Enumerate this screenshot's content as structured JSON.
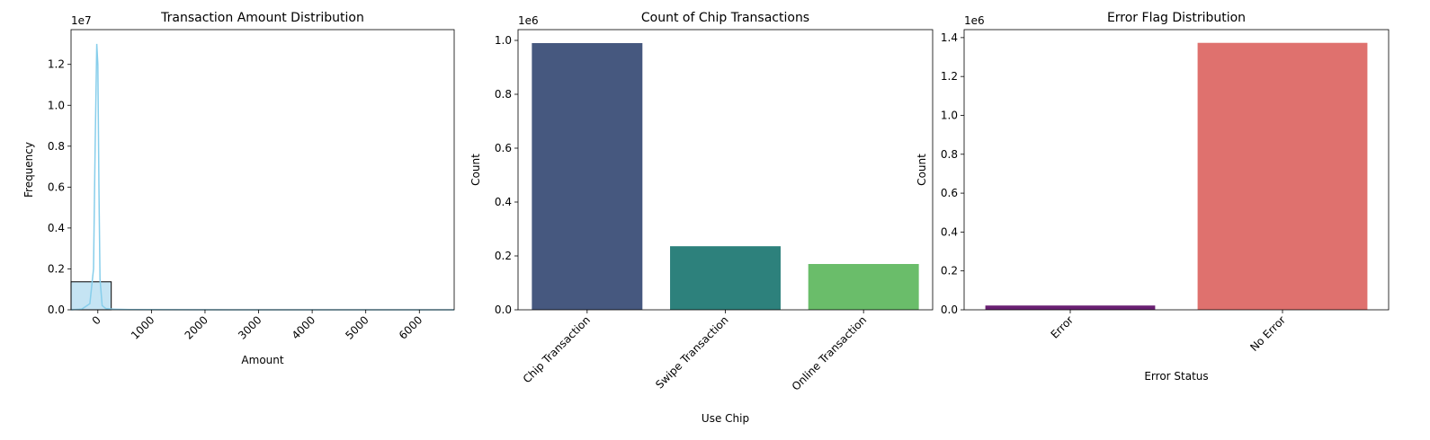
{
  "chart_data": [
    {
      "type": "bar",
      "subtype": "histogram-with-kde",
      "title": "Transaction Amount Distribution",
      "xlabel": "Amount",
      "ylabel": "Frequency",
      "y_multiplier": "1e7",
      "xlim": [
        -500,
        6650
      ],
      "ylim": [
        0,
        13700000
      ],
      "xticks": [
        "0",
        "1000",
        "2000",
        "3000",
        "4000",
        "5000",
        "6000"
      ],
      "xtick_values": [
        0,
        1000,
        2000,
        3000,
        4000,
        5000,
        6000
      ],
      "yticks": [
        "0.0",
        "0.2",
        "0.4",
        "0.6",
        "0.8",
        "1.0",
        "1.2"
      ],
      "ytick_values": [
        0,
        2000000,
        4000000,
        6000000,
        8000000,
        10000000,
        12000000
      ],
      "bars": [
        {
          "x0": -500,
          "x1": 250,
          "value": 1370000
        }
      ],
      "kde": {
        "x": [
          -500,
          -300,
          -150,
          -80,
          -50,
          -20,
          0,
          20,
          40,
          80,
          150,
          300,
          600,
          1500,
          3000,
          6650
        ],
        "y": [
          0,
          30000,
          300000,
          2000000,
          8000000,
          13000000,
          12000000,
          6000000,
          1500000,
          200000,
          60000,
          25000,
          15000,
          5000,
          2000,
          0
        ]
      },
      "colors": {
        "bar": "#c5e4f3",
        "edge": "#000000",
        "kde": "#87ceeb"
      }
    },
    {
      "type": "bar",
      "title": "Count of Chip Transactions",
      "xlabel": "Use Chip",
      "ylabel": "Count",
      "y_multiplier": "1e6",
      "categories": [
        "Chip Transaction",
        "Swipe Transaction",
        "Online Transaction"
      ],
      "values": [
        990000,
        236000,
        170000
      ],
      "ylim": [
        0,
        1040000
      ],
      "yticks": [
        "0.0",
        "0.2",
        "0.4",
        "0.6",
        "0.8",
        "1.0"
      ],
      "ytick_values": [
        0,
        200000,
        400000,
        600000,
        800000,
        1000000
      ],
      "colors": [
        "#46587f",
        "#2d817c",
        "#6abd6a"
      ]
    },
    {
      "type": "bar",
      "title": "Error Flag Distribution",
      "xlabel": "Error Status",
      "ylabel": "Count",
      "y_multiplier": "1e6",
      "categories": [
        "Error",
        "No Error"
      ],
      "values": [
        22000,
        1373000
      ],
      "ylim": [
        0,
        1441000
      ],
      "yticks": [
        "0.0",
        "0.2",
        "0.4",
        "0.6",
        "0.8",
        "1.0",
        "1.2",
        "1.4"
      ],
      "ytick_values": [
        0,
        200000,
        400000,
        600000,
        800000,
        1000000,
        1200000,
        1400000
      ],
      "colors": [
        "#6a2073",
        "#df716e"
      ]
    }
  ]
}
